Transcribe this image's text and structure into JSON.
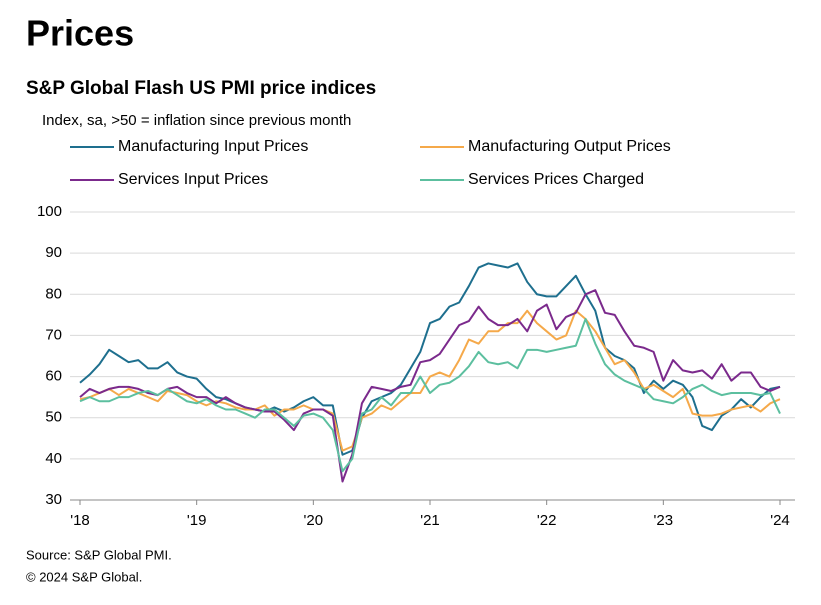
{
  "chart_data": {
    "type": "line",
    "title": "Prices",
    "subtitle": "S&P Global Flash US PMI price indices",
    "y_label": "Index, sa, >50 = inflation since previous month",
    "source": "Source: S&P Global PMI.",
    "copyright": "© 2024 S&P Global.",
    "categories": [
      "'18",
      null,
      null,
      null,
      null,
      null,
      null,
      null,
      null,
      null,
      null,
      null,
      "'19",
      null,
      null,
      null,
      null,
      null,
      null,
      null,
      null,
      null,
      null,
      null,
      "'20",
      null,
      null,
      null,
      null,
      null,
      null,
      null,
      null,
      null,
      null,
      null,
      "'21",
      null,
      null,
      null,
      null,
      null,
      null,
      null,
      null,
      null,
      null,
      null,
      "'22",
      null,
      null,
      null,
      null,
      null,
      null,
      null,
      null,
      null,
      null,
      null,
      "'23",
      null,
      null,
      null,
      null,
      null,
      null,
      null,
      null,
      null,
      null,
      null,
      "'24"
    ],
    "ylim": [
      30,
      100
    ],
    "yticks": [
      30,
      40,
      50,
      60,
      70,
      80,
      90,
      100
    ],
    "grid": true,
    "series": [
      {
        "name": "Manufacturing Input Prices",
        "color": "#1e6f8e",
        "values": [
          58.5,
          60.5,
          63,
          66.5,
          65,
          63.5,
          64,
          62,
          62,
          63.5,
          61,
          60,
          59.5,
          57,
          55,
          54.5,
          53.5,
          52.5,
          52,
          51.5,
          52.5,
          51.5,
          52.5,
          54,
          55,
          53,
          53,
          41,
          42,
          50,
          54,
          55,
          56,
          58,
          62,
          66,
          73,
          74,
          77,
          78,
          82,
          86.5,
          87.5,
          87,
          86.5,
          87.5,
          83,
          80,
          79.5,
          79.5,
          82,
          84.5,
          80,
          76,
          67,
          65,
          64,
          62,
          56,
          59,
          57,
          59,
          58,
          55,
          48,
          47,
          50.5,
          52,
          54.5,
          52.5,
          55,
          57,
          57.5
        ]
      },
      {
        "name": "Manufacturing Output Prices",
        "color": "#f5a94a",
        "values": [
          54.5,
          55,
          56,
          57,
          55.5,
          57,
          56,
          55,
          54,
          56.5,
          56,
          55.5,
          54,
          53,
          54,
          53.5,
          52.5,
          52,
          52,
          53,
          50.5,
          52,
          52,
          53,
          52,
          52,
          51,
          42,
          43,
          50,
          51,
          53,
          52,
          54,
          56,
          56,
          60,
          61,
          60,
          64,
          69,
          68,
          71,
          71,
          73,
          73,
          76,
          73,
          71,
          69,
          70,
          76,
          74,
          71,
          67,
          63,
          64,
          61,
          57,
          58,
          56.5,
          55,
          57,
          51,
          50.5,
          50.5,
          51,
          52,
          52.5,
          53,
          51.5,
          53.5,
          54.5
        ]
      },
      {
        "name": "Services Input Prices",
        "color": "#7b2a8c",
        "values": [
          55,
          57,
          56,
          57,
          57.5,
          57.5,
          57,
          56,
          55.5,
          57,
          57.5,
          56,
          55,
          55,
          53.5,
          55,
          53.5,
          52.5,
          52,
          51.5,
          51.5,
          49.5,
          47,
          51,
          52,
          52,
          50.5,
          34.5,
          41,
          53.5,
          57.5,
          57,
          56.5,
          57.5,
          58,
          63.5,
          64,
          65.5,
          69,
          72.5,
          73.5,
          77,
          74,
          72.5,
          72.5,
          74,
          71,
          76,
          77.5,
          71.5,
          74.5,
          75.5,
          80,
          81,
          75.5,
          75,
          71,
          67.5,
          67,
          66,
          59,
          64,
          61.5,
          61,
          61.5,
          59.5,
          63,
          59,
          61,
          61,
          57.5,
          56.5,
          57.5
        ]
      },
      {
        "name": "Services Prices Charged",
        "color": "#5cbf9f",
        "values": [
          54,
          55,
          54,
          54,
          55,
          55,
          56,
          56.5,
          55.5,
          57,
          55.5,
          54,
          53.5,
          54.5,
          53,
          52,
          52,
          51,
          50,
          52,
          52,
          50,
          48,
          50.5,
          51,
          50,
          47,
          37,
          40,
          51,
          52,
          55,
          53,
          56,
          56,
          60,
          56,
          58,
          58.5,
          60,
          62.5,
          66,
          63.5,
          63,
          63.5,
          62,
          66.5,
          66.5,
          66,
          66.5,
          67,
          67.5,
          74,
          68,
          63,
          60.5,
          59,
          58,
          57,
          54.5,
          54,
          53.5,
          55,
          57,
          58,
          56.5,
          55.5,
          56,
          56,
          56,
          55.5,
          56,
          51
        ]
      }
    ]
  }
}
